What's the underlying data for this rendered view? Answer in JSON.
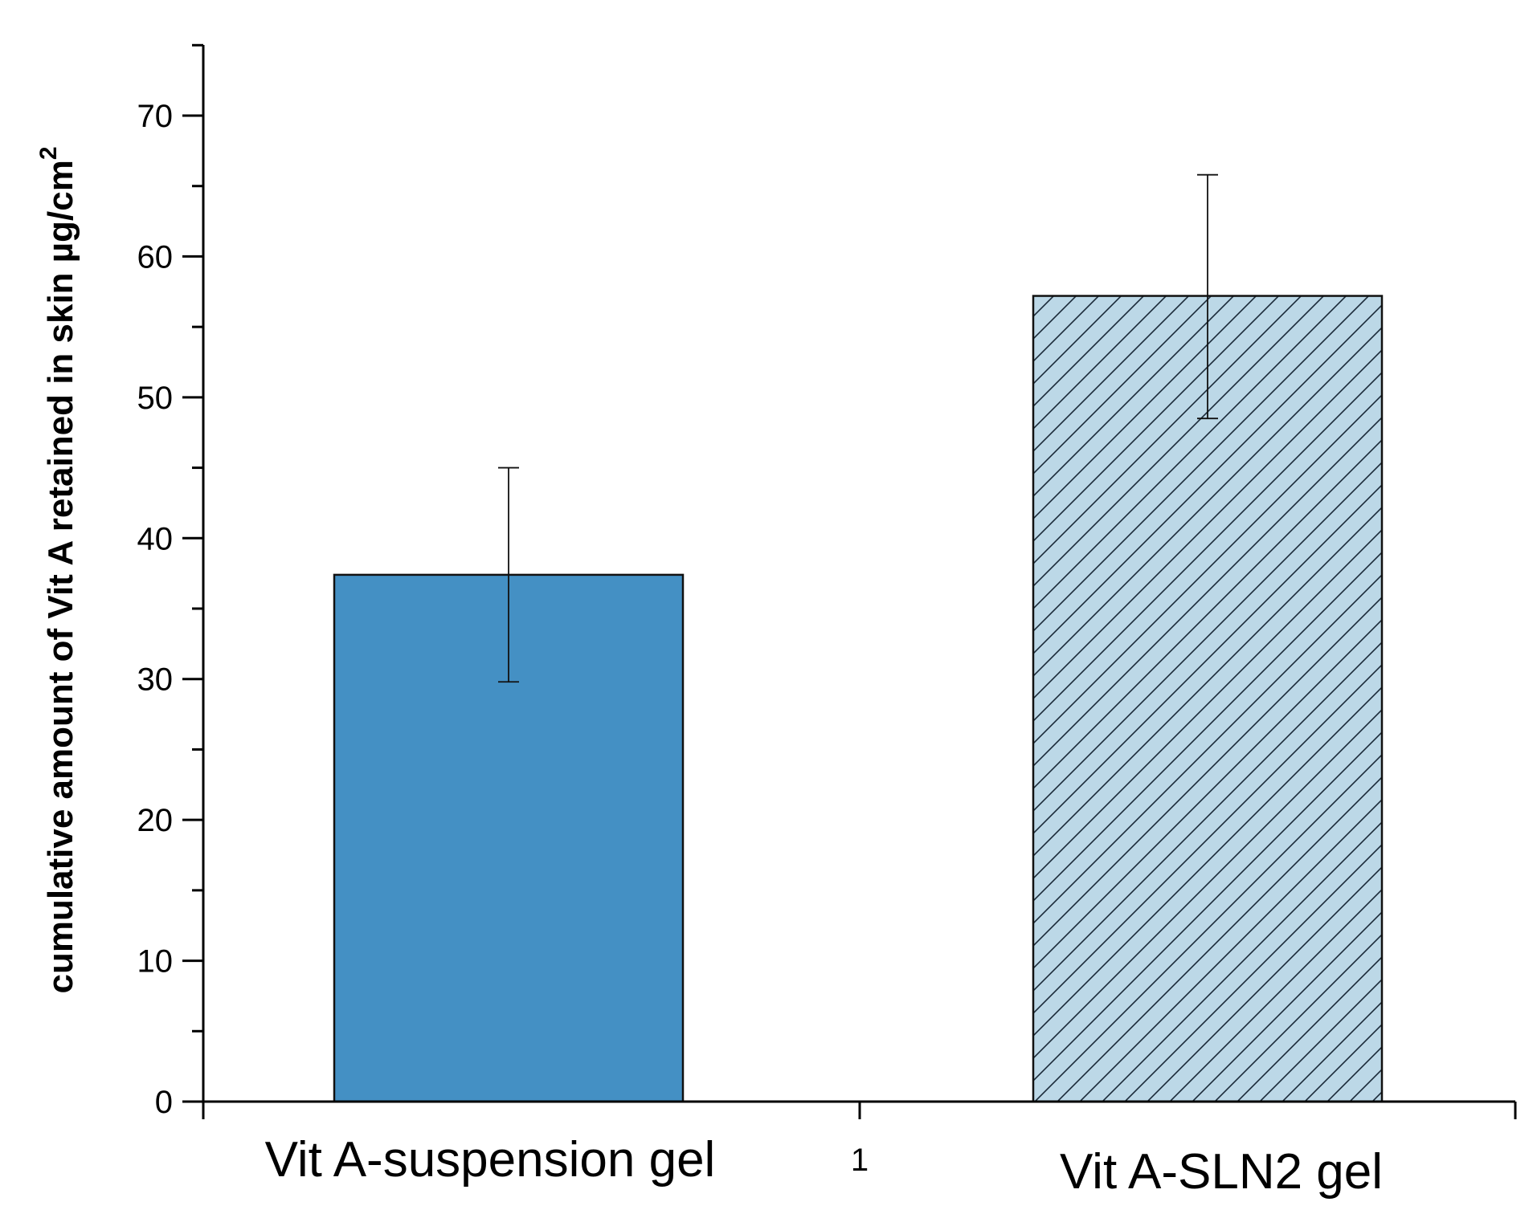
{
  "chart_data": {
    "type": "bar",
    "categories": [
      "Vit A-suspension gel",
      "Vit A-SLN2 gel"
    ],
    "x_tick_label": "1",
    "values": [
      37.4,
      57.2
    ],
    "errors_upper": [
      45.0,
      65.8
    ],
    "errors_lower": [
      29.8,
      48.5
    ],
    "bar_styles": [
      {
        "fill": "#4490c4",
        "pattern": "solid"
      },
      {
        "fill": "#bcd8e7",
        "pattern": "diagonal-hatch"
      }
    ],
    "ylabel_main": "cumulative amount of Vit A retained in skin µg/cm",
    "ylabel_sup": "2",
    "ylim": [
      0,
      75
    ],
    "yticks": [
      0,
      10,
      20,
      30,
      40,
      50,
      60,
      70
    ],
    "grid": false,
    "legend": "none"
  }
}
